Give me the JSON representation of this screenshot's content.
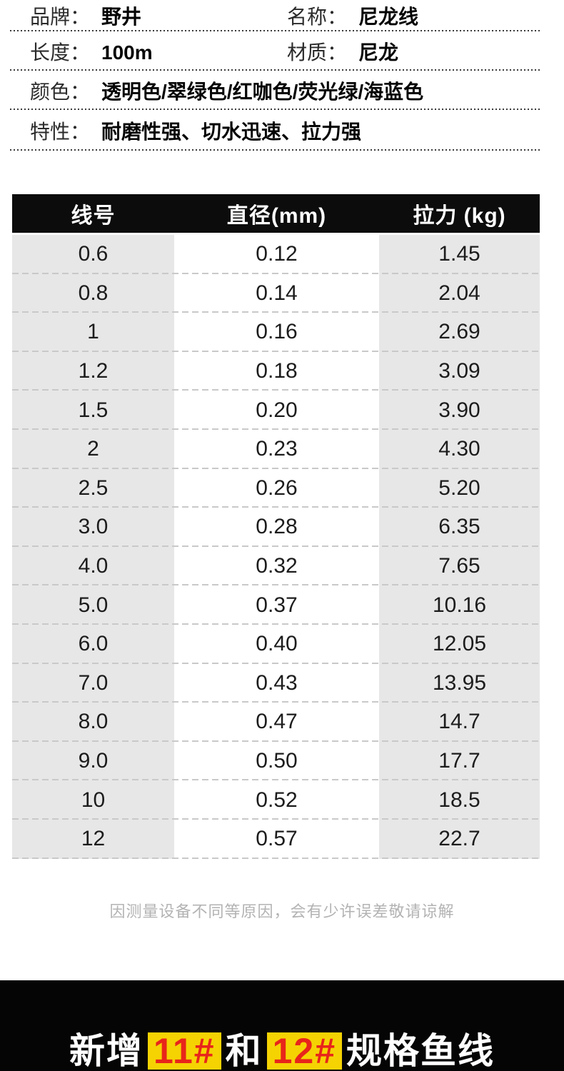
{
  "attributes": {
    "rows": [
      {
        "pairs": [
          {
            "label": "品牌：",
            "value": "野井"
          },
          {
            "label": "名称：",
            "value": "尼龙线"
          }
        ]
      },
      {
        "pairs": [
          {
            "label": "长度：",
            "value": "100m"
          },
          {
            "label": "材质：",
            "value": "尼龙"
          }
        ]
      },
      {
        "pairs": [
          {
            "label": "颜色：",
            "value": "透明色/翠绿色/红咖色/荧光绿/海蓝色"
          }
        ]
      },
      {
        "pairs": [
          {
            "label": "特性：",
            "value": "耐磨性强、切水迅速、拉力强"
          }
        ]
      }
    ]
  },
  "spec_table": {
    "headers": [
      "线号",
      "直径(mm)",
      "拉力 (kg)"
    ],
    "rows": [
      [
        "0.6",
        "0.12",
        "1.45"
      ],
      [
        "0.8",
        "0.14",
        "2.04"
      ],
      [
        "1",
        "0.16",
        "2.69"
      ],
      [
        "1.2",
        "0.18",
        "3.09"
      ],
      [
        "1.5",
        "0.20",
        "3.90"
      ],
      [
        "2",
        "0.23",
        "4.30"
      ],
      [
        "2.5",
        "0.26",
        "5.20"
      ],
      [
        "3.0",
        "0.28",
        "6.35"
      ],
      [
        "4.0",
        "0.32",
        "7.65"
      ],
      [
        "5.0",
        "0.37",
        "10.16"
      ],
      [
        "6.0",
        "0.40",
        "12.05"
      ],
      [
        "7.0",
        "0.43",
        "13.95"
      ],
      [
        "8.0",
        "0.47",
        "14.7"
      ],
      [
        "9.0",
        "0.50",
        "17.7"
      ],
      [
        "10",
        "0.52",
        "18.5"
      ],
      [
        "12",
        "0.57",
        "22.7"
      ]
    ]
  },
  "note": "因测量设备不同等原因，会有少许误差敬请谅解",
  "banner": {
    "segments": [
      {
        "text": "新增",
        "highlight": false
      },
      {
        "text": "11#",
        "highlight": true
      },
      {
        "text": "和",
        "highlight": false
      },
      {
        "text": "12#",
        "highlight": true
      },
      {
        "text": "规格鱼线",
        "highlight": false
      }
    ]
  },
  "colors": {
    "header_bg": "#0c0c0c",
    "row_gray": "#e7e7e7",
    "dash_gray": "#c9c9c9",
    "note_gray": "#b3b3b3",
    "banner_bg": "#050505",
    "chip_yellow": "#f5d303",
    "chip_red": "#e8251a"
  }
}
